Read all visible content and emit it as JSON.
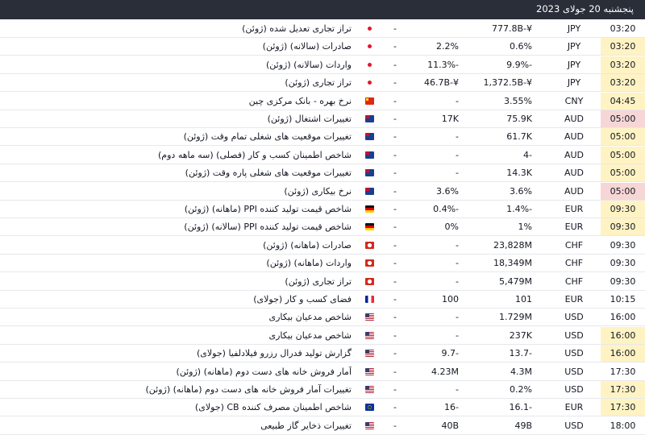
{
  "header": {
    "date": "پنجشنبه 20 جولای 2023"
  },
  "colors": {
    "header_bg": "#2a2e39",
    "medium_importance": "#fff3c4",
    "high_importance": "#f6d6d6"
  },
  "rows": [
    {
      "time": "03:20",
      "currency": "JPY",
      "actual": "777.8B-¥",
      "forecast": "",
      "previous": "",
      "flag": "japan-flag",
      "country": "JP",
      "event": "تراز تجاری تعدیل شده (ژوئن)",
      "highlight": ""
    },
    {
      "time": "03:20",
      "currency": "JPY",
      "actual": "0.6%",
      "forecast": "2.2%",
      "previous": "",
      "flag": "japan-flag",
      "country": "JP",
      "event": "صادرات (سالانه) (ژوئن)",
      "highlight": "yellow"
    },
    {
      "time": "03:20",
      "currency": "JPY",
      "actual": "9.9%-",
      "forecast": "11.3%-",
      "previous": "",
      "flag": "japan-flag",
      "country": "JP",
      "event": "واردات (سالانه) (ژوئن)",
      "highlight": "yellow"
    },
    {
      "time": "03:20",
      "currency": "JPY",
      "actual": "1,372.5B-¥",
      "forecast": "46.7B-¥",
      "previous": "",
      "flag": "japan-flag",
      "country": "JP",
      "event": "تراز تجاری (ژوئن)",
      "highlight": "yellow"
    },
    {
      "time": "04:45",
      "currency": "CNY",
      "actual": "3.55%",
      "forecast": "-",
      "previous": "",
      "flag": "china-flag",
      "country": "CN",
      "event": "نرخ بهره - بانک مرکزی چین",
      "highlight": "yellow"
    },
    {
      "time": "05:00",
      "currency": "AUD",
      "actual": "75.9K",
      "forecast": "17K",
      "previous": "",
      "flag": "australia-flag",
      "country": "AU",
      "event": "تغییرات اشتغال (ژوئن)",
      "highlight": "red"
    },
    {
      "time": "05:00",
      "currency": "AUD",
      "actual": "61.7K",
      "forecast": "-",
      "previous": "",
      "flag": "australia-flag",
      "country": "AU",
      "event": "تغییرات موقعیت های شغلی تمام وقت (ژوئن)",
      "highlight": "yellow"
    },
    {
      "time": "05:00",
      "currency": "AUD",
      "actual": "4-",
      "forecast": "-",
      "previous": "",
      "flag": "australia-flag",
      "country": "AU",
      "event": "شاخص اطمینان کسب و کار (فصلی) (سه ماهه دوم)",
      "highlight": "yellow"
    },
    {
      "time": "05:00",
      "currency": "AUD",
      "actual": "14.3K",
      "forecast": "-",
      "previous": "",
      "flag": "australia-flag",
      "country": "AU",
      "event": "تغییرات موقعیت های شغلی پاره وقت (ژوئن)",
      "highlight": "yellow"
    },
    {
      "time": "05:00",
      "currency": "AUD",
      "actual": "3.6%",
      "forecast": "3.6%",
      "previous": "",
      "flag": "australia-flag",
      "country": "AU",
      "event": "نرخ بیکاری (ژوئن)",
      "highlight": "red"
    },
    {
      "time": "09:30",
      "currency": "EUR",
      "actual": "1.4%-",
      "forecast": "0.4%-",
      "previous": "",
      "flag": "germany-flag",
      "country": "DE",
      "event": "شاخص قیمت تولید کننده PPI (ماهانه) (ژوئن)",
      "highlight": "yellow"
    },
    {
      "time": "09:30",
      "currency": "EUR",
      "actual": "1%",
      "forecast": "0%",
      "previous": "",
      "flag": "germany-flag",
      "country": "DE",
      "event": "شاخص قیمت تولید کننده PPI (سالانه) (ژوئن)",
      "highlight": "yellow"
    },
    {
      "time": "09:30",
      "currency": "CHF",
      "actual": "23,828M",
      "forecast": "-",
      "previous": "",
      "flag": "switzerland-flag",
      "country": "CH",
      "event": "صادرات (ماهانه) (ژوئن)",
      "highlight": ""
    },
    {
      "time": "09:30",
      "currency": "CHF",
      "actual": "18,349M",
      "forecast": "-",
      "previous": "",
      "flag": "switzerland-flag",
      "country": "CH",
      "event": "واردات (ماهانه) (ژوئن)",
      "highlight": ""
    },
    {
      "time": "09:30",
      "currency": "CHF",
      "actual": "5,479M",
      "forecast": "-",
      "previous": "",
      "flag": "switzerland-flag",
      "country": "CH",
      "event": "تراز تجاری (ژوئن)",
      "highlight": ""
    },
    {
      "time": "10:15",
      "currency": "EUR",
      "actual": "101",
      "forecast": "100",
      "previous": "",
      "flag": "france-flag",
      "country": "FR",
      "event": "فضای کسب و کار (جولای)",
      "highlight": ""
    },
    {
      "time": "16:00",
      "currency": "USD",
      "actual": "1.729M",
      "forecast": "-",
      "previous": "",
      "flag": "usa-flag",
      "country": "US",
      "event": "شاخص مدعیان بیکاری",
      "highlight": ""
    },
    {
      "time": "16:00",
      "currency": "USD",
      "actual": "237K",
      "forecast": "-",
      "previous": "",
      "flag": "usa-flag",
      "country": "US",
      "event": "شاخص مدعیان بیکاری",
      "highlight": "yellow"
    },
    {
      "time": "16:00",
      "currency": "USD",
      "actual": "13.7-",
      "forecast": "9.7-",
      "previous": "",
      "flag": "usa-flag",
      "country": "US",
      "event": "گزارش تولید فدرال رزرو فیلادلفیا (جولای)",
      "highlight": "yellow"
    },
    {
      "time": "17:30",
      "currency": "USD",
      "actual": "4.3M",
      "forecast": "4.23M",
      "previous": "",
      "flag": "usa-flag",
      "country": "US",
      "event": "آمار فروش خانه های دست دوم (ماهانه) (ژوئن)",
      "highlight": ""
    },
    {
      "time": "17:30",
      "currency": "USD",
      "actual": "0.2%",
      "forecast": "-",
      "previous": "",
      "flag": "usa-flag",
      "country": "US",
      "event": "تغییرات آمار فروش خانه های دست دوم (ماهانه) (ژوئن)",
      "highlight": "yellow"
    },
    {
      "time": "17:30",
      "currency": "EUR",
      "actual": "16.1-",
      "forecast": "16-",
      "previous": "",
      "flag": "eu-flag",
      "country": "EU",
      "event": "شاخص اطمینان مصرف کننده CB (جولای)",
      "highlight": "yellow"
    },
    {
      "time": "18:00",
      "currency": "USD",
      "actual": "49B",
      "forecast": "40B",
      "previous": "",
      "flag": "usa-flag",
      "country": "US",
      "event": "تغییرات ذخایر گاز طبیعی",
      "highlight": ""
    }
  ]
}
